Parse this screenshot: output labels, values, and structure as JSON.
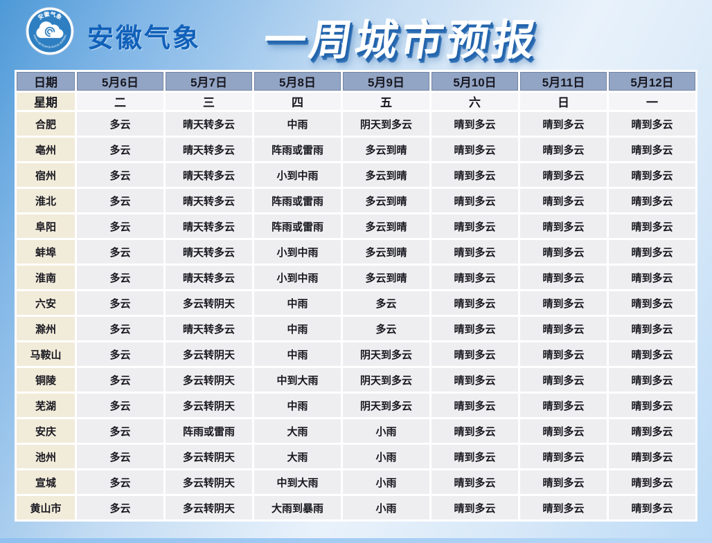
{
  "header": {
    "brand": "安徽气象",
    "title": "一周城市预报",
    "logo": {
      "top_text": "安徽气象",
      "bottom_text": "ANHUI METEOROLOGICAL BUREAU"
    }
  },
  "chart_data": {
    "type": "table",
    "title": "一周城市预报",
    "columns": [
      "日期",
      "5月6日",
      "5月7日",
      "5月8日",
      "5月9日",
      "5月10日",
      "5月11日",
      "5月12日"
    ],
    "week_row": [
      "星期",
      "二",
      "三",
      "四",
      "五",
      "六",
      "日",
      "一"
    ],
    "rows": [
      [
        "合肥",
        "多云",
        "晴天转多云",
        "中雨",
        "阴天到多云",
        "晴到多云",
        "晴到多云",
        "晴到多云"
      ],
      [
        "亳州",
        "多云",
        "晴天转多云",
        "阵雨或雷雨",
        "多云到晴",
        "晴到多云",
        "晴到多云",
        "晴到多云"
      ],
      [
        "宿州",
        "多云",
        "晴天转多云",
        "小到中雨",
        "多云到晴",
        "晴到多云",
        "晴到多云",
        "晴到多云"
      ],
      [
        "淮北",
        "多云",
        "晴天转多云",
        "阵雨或雷雨",
        "多云到晴",
        "晴到多云",
        "晴到多云",
        "晴到多云"
      ],
      [
        "阜阳",
        "多云",
        "晴天转多云",
        "阵雨或雷雨",
        "多云到晴",
        "晴到多云",
        "晴到多云",
        "晴到多云"
      ],
      [
        "蚌埠",
        "多云",
        "晴天转多云",
        "小到中雨",
        "多云到晴",
        "晴到多云",
        "晴到多云",
        "晴到多云"
      ],
      [
        "淮南",
        "多云",
        "晴天转多云",
        "小到中雨",
        "多云到晴",
        "晴到多云",
        "晴到多云",
        "晴到多云"
      ],
      [
        "六安",
        "多云",
        "多云转阴天",
        "中雨",
        "多云",
        "晴到多云",
        "晴到多云",
        "晴到多云"
      ],
      [
        "滁州",
        "多云",
        "晴天转多云",
        "中雨",
        "多云",
        "晴到多云",
        "晴到多云",
        "晴到多云"
      ],
      [
        "马鞍山",
        "多云",
        "多云转阴天",
        "中雨",
        "阴天到多云",
        "晴到多云",
        "晴到多云",
        "晴到多云"
      ],
      [
        "铜陵",
        "多云",
        "多云转阴天",
        "中到大雨",
        "阴天到多云",
        "晴到多云",
        "晴到多云",
        "晴到多云"
      ],
      [
        "芜湖",
        "多云",
        "多云转阴天",
        "中雨",
        "阴天到多云",
        "晴到多云",
        "晴到多云",
        "晴到多云"
      ],
      [
        "安庆",
        "多云",
        "阵雨或雷雨",
        "大雨",
        "小雨",
        "晴到多云",
        "晴到多云",
        "晴到多云"
      ],
      [
        "池州",
        "多云",
        "多云转阴天",
        "大雨",
        "小雨",
        "晴到多云",
        "晴到多云",
        "晴到多云"
      ],
      [
        "宣城",
        "多云",
        "多云转阴天",
        "中到大雨",
        "小雨",
        "晴到多云",
        "晴到多云",
        "晴到多云"
      ],
      [
        "黄山市",
        "多云",
        "多云转阴天",
        "大雨到暴雨",
        "小雨",
        "晴到多云",
        "晴到多云",
        "晴到多云"
      ]
    ],
    "colors": {
      "header_bg": "#93a5c5",
      "city_col_bg": "#f1ebd9",
      "week_row_bg": "#f5f5f7",
      "cell_bg": "#eeeef0",
      "title_shadow": "#2364ac",
      "brand_blue": "#1161ba",
      "logo_blue": "#2e7fc2"
    }
  }
}
